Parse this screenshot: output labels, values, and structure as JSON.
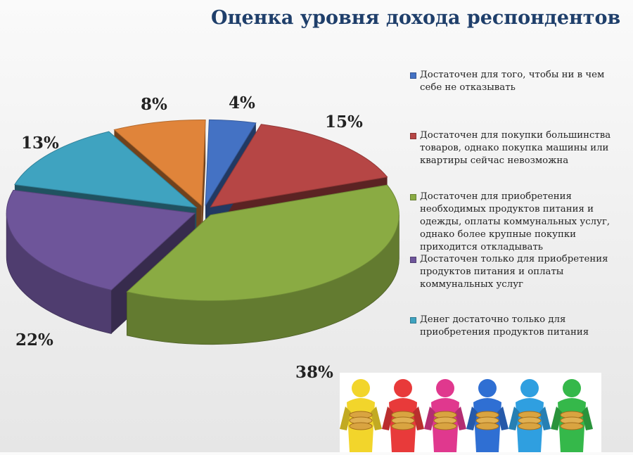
{
  "chart_data": {
    "type": "pie",
    "title": "Оценка уровня дохода респондентов",
    "style": "3d-exploded",
    "legend_position": "right",
    "slices": [
      {
        "label": "Достаточен для того, чтобы ни в чем себе не отказывать",
        "value": 4,
        "value_label": "4%",
        "color": "#4472c4"
      },
      {
        "label": "Достаточен для покупки большинства товаров, однако покупка машины или квартиры сейчас невозможна",
        "value": 15,
        "value_label": "15%",
        "color": "#b64645"
      },
      {
        "label": "Достаточен для приобретения необходимых продуктов питания и одежды, оплаты коммунальных услуг, однако более крупные покупки приходится откладывать",
        "value": 38,
        "value_label": "38%",
        "color": "#8aab43"
      },
      {
        "label": "Достаточен только для приобретения продуктов питания и оплаты коммунальных услуг",
        "value": 22,
        "value_label": "22%",
        "color": "#6e559a"
      },
      {
        "label": "Денег достаточно только для приобретения продуктов питания",
        "value": 13,
        "value_label": "13%",
        "color": "#3fa3c0"
      },
      {
        "label": "",
        "value": 8,
        "value_label": "8%",
        "color": "#e0843a"
      }
    ]
  },
  "decoration": {
    "figures_colors": [
      "#f2d52b",
      "#e83a3a",
      "#e0388e",
      "#2f6fd3",
      "#2f9fe0",
      "#35b84a"
    ]
  }
}
